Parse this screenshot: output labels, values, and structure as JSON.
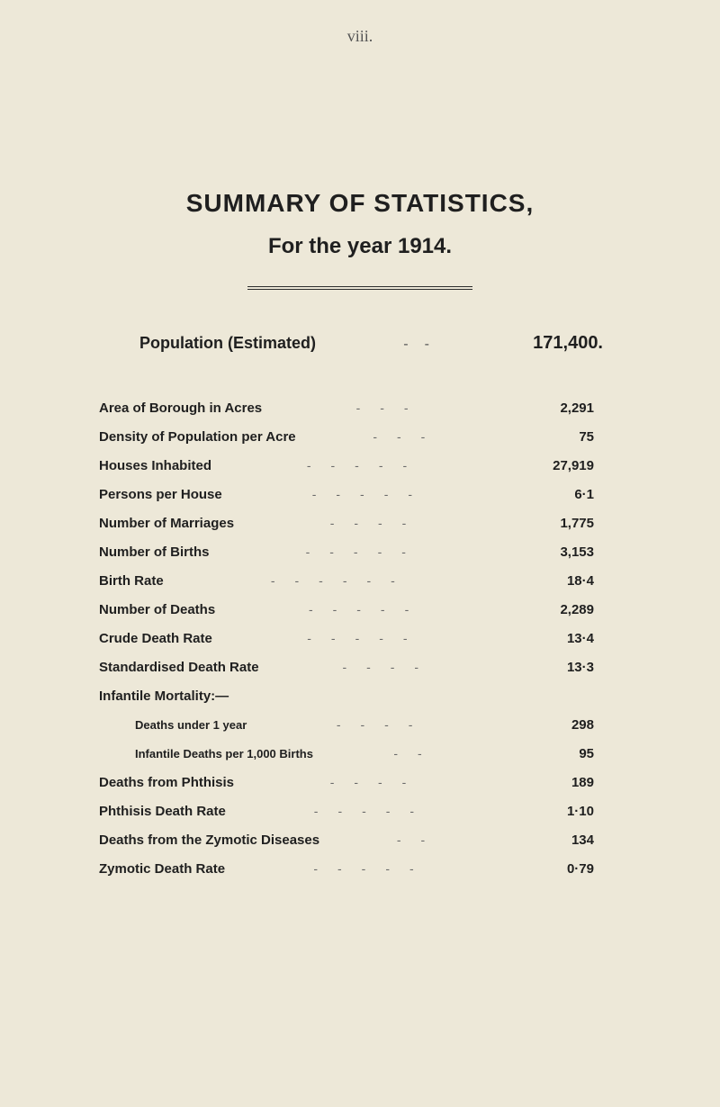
{
  "page_number": "viii.",
  "title": "SUMMARY OF STATISTICS,",
  "subtitle": "For the year 1914.",
  "population": {
    "label": "Population (Estimated)",
    "value": "171,400."
  },
  "stats": [
    {
      "label": "Area of Borough in Acres",
      "value": "2,291",
      "dashes": "---"
    },
    {
      "label": "Density of Population per Acre",
      "value": "75",
      "dashes": "---"
    },
    {
      "label": "Houses Inhabited",
      "value": "27,919",
      "dashes": "-----"
    },
    {
      "label": "Persons per House",
      "value": "6·1",
      "dashes": "-----"
    },
    {
      "label": "Number of Marriages",
      "value": "1,775",
      "dashes": "----"
    },
    {
      "label": "Number of Births",
      "value": "3,153",
      "dashes": "-----"
    },
    {
      "label": "Birth Rate",
      "value": "18·4",
      "dashes": "------"
    },
    {
      "label": "Number of Deaths",
      "value": "2,289",
      "dashes": "-----"
    },
    {
      "label": "Crude Death Rate",
      "value": "13·4",
      "dashes": "-----"
    },
    {
      "label": "Standardised Death Rate",
      "value": "13·3",
      "dashes": "----"
    }
  ],
  "infantile_heading": "Infantile Mortality:—",
  "infantile_stats": [
    {
      "label": "Deaths under 1 year",
      "value": "298",
      "dashes": "----"
    },
    {
      "label": "Infantile Deaths per 1,000 Births",
      "value": "95",
      "dashes": "--"
    }
  ],
  "final_stats": [
    {
      "label": "Deaths from Phthisis",
      "value": "189",
      "dashes": "----"
    },
    {
      "label": "Phthisis Death Rate",
      "value": "1·10",
      "dashes": "-----"
    },
    {
      "label": "Deaths from the Zymotic Diseases",
      "value": "134",
      "dashes": "--"
    },
    {
      "label": "Zymotic Death Rate",
      "value": "0·79",
      "dashes": "-----"
    }
  ]
}
